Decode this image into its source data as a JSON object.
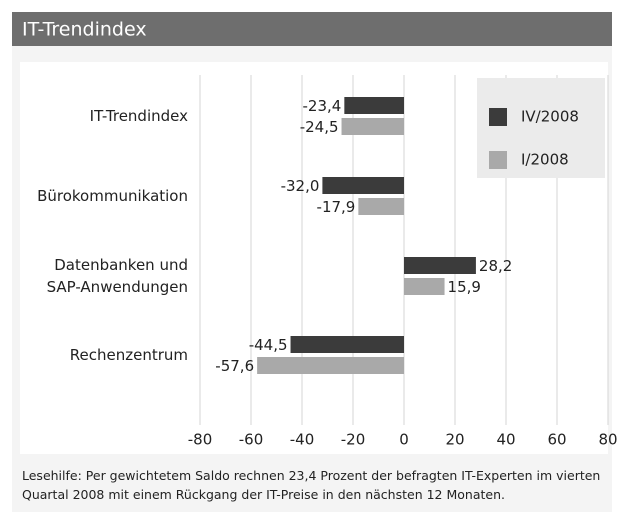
{
  "chart_data": {
    "type": "bar",
    "orientation": "horizontal",
    "title": "IT-Trendindex",
    "categories": [
      "IT-Trendindex",
      "Bürokommunikation",
      "Datenbanken und SAP-Anwendungen",
      "Rechenzentrum"
    ],
    "series": [
      {
        "name": "IV/2008",
        "color": "#3b3b3b",
        "values": [
          -23.4,
          -32.0,
          28.2,
          -44.5
        ],
        "value_labels": [
          "-23,4",
          "-32,0",
          "28,2",
          "-44,5"
        ]
      },
      {
        "name": "I/2008",
        "color": "#a9a9a9",
        "values": [
          -24.5,
          -17.9,
          15.9,
          -57.6
        ],
        "value_labels": [
          "-24,5",
          "-17,9",
          "15,9",
          "-57,6"
        ]
      }
    ],
    "xlim": [
      -80,
      80
    ],
    "xticks": [
      -80,
      -60,
      -40,
      -20,
      0,
      20,
      40,
      60,
      80
    ],
    "grid": true,
    "legend": "upper right",
    "footnote": "Lesehilfe: Per gewichtetem Saldo rechnen 23,4 Prozent der befragten IT-Experten im vierten Quartal 2008 mit einem Rückgang der IT-Preise in den nächsten 12 Monaten."
  }
}
